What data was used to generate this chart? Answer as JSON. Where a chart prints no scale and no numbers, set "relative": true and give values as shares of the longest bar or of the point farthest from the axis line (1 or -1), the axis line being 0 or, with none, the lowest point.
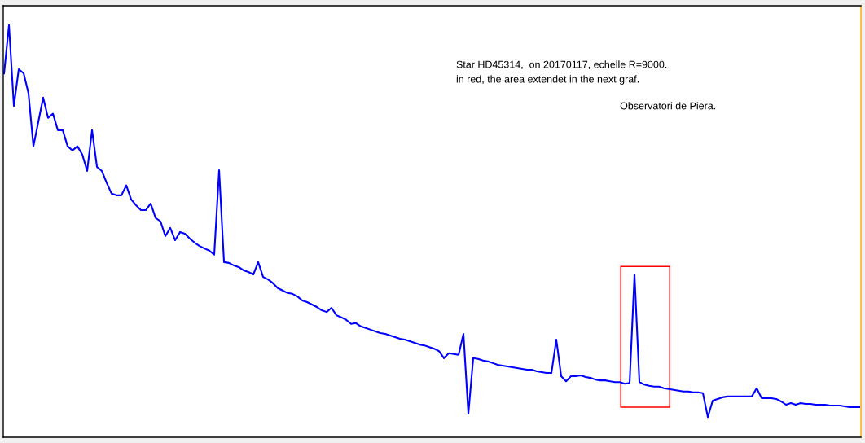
{
  "chart_data": {
    "type": "line",
    "relative": true,
    "categories": [
      null,
      null,
      null,
      null,
      null,
      null,
      null,
      null,
      null,
      null,
      null,
      null,
      null,
      null,
      null,
      null,
      null,
      null,
      null,
      null,
      null,
      null,
      null,
      null,
      null,
      null,
      null,
      null,
      null,
      null,
      null,
      null,
      null,
      null,
      null,
      null,
      null,
      null,
      null,
      null,
      null,
      null,
      null,
      null,
      null,
      null,
      null,
      null,
      null,
      null,
      null,
      null,
      null,
      null,
      null,
      null,
      null,
      null,
      null,
      null,
      null,
      null,
      null,
      null,
      null,
      null,
      null,
      null,
      null,
      null,
      null,
      null,
      null,
      null,
      null,
      null,
      null,
      null,
      null,
      null,
      null,
      null,
      null,
      null,
      null,
      null,
      null,
      null,
      null,
      null,
      null,
      null,
      null,
      null,
      null,
      null,
      null,
      null,
      null,
      null,
      null,
      null,
      null,
      null,
      null,
      null,
      null,
      null,
      null,
      null,
      null,
      null,
      null,
      null,
      null,
      null,
      null,
      null,
      null,
      null,
      null,
      null,
      null,
      null,
      null,
      null,
      null,
      null,
      null,
      null,
      null,
      null,
      null,
      null,
      null,
      null,
      null,
      null,
      null,
      null,
      null,
      null,
      null,
      null,
      null,
      null,
      null,
      null,
      null,
      null,
      null,
      null,
      null,
      null,
      null,
      null,
      null,
      null,
      null,
      null,
      null,
      null,
      null,
      null,
      null,
      null,
      null,
      null,
      null,
      null,
      null,
      null,
      null,
      null,
      null,
      null
    ],
    "series": [
      {
        "color": "#0000ff",
        "values": [
          0.883,
          1,
          0.804,
          0.893,
          0.883,
          0.834,
          0.706,
          0.765,
          0.824,
          0.775,
          0.785,
          0.745,
          0.745,
          0.706,
          0.696,
          0.706,
          0.686,
          0.646,
          0.745,
          0.656,
          0.646,
          0.617,
          0.591,
          0.587,
          0.587,
          0.611,
          0.577,
          0.563,
          0.551,
          0.551,
          0.567,
          0.532,
          0.524,
          0.488,
          0.508,
          0.478,
          0.498,
          0.494,
          0.482,
          0.472,
          0.464,
          0.458,
          0.453,
          0.443,
          0.648,
          0.425,
          0.423,
          0.417,
          0.413,
          0.405,
          0.401,
          0.395,
          0.425,
          0.389,
          0.383,
          0.374,
          0.362,
          0.356,
          0.35,
          0.348,
          0.342,
          0.332,
          0.328,
          0.322,
          0.316,
          0.308,
          0.304,
          0.314,
          0.296,
          0.291,
          0.285,
          0.275,
          0.277,
          0.269,
          0.265,
          0.261,
          0.257,
          0.253,
          0.251,
          0.247,
          0.243,
          0.239,
          0.237,
          0.233,
          0.229,
          0.225,
          0.223,
          0.219,
          0.215,
          0.209,
          0.192,
          0.204,
          0.202,
          0.2,
          0.251,
          0.057,
          0.192,
          0.19,
          0.186,
          0.184,
          0.18,
          0.176,
          0.174,
          0.172,
          0.17,
          0.168,
          0.166,
          0.164,
          0.164,
          0.16,
          0.158,
          0.156,
          0.156,
          0.237,
          0.148,
          0.136,
          0.148,
          0.148,
          0.15,
          0.146,
          0.144,
          0.14,
          0.138,
          0.138,
          0.136,
          0.134,
          0.134,
          0.13,
          0.132,
          0.395,
          0.134,
          0.128,
          0.125,
          0.123,
          0.123,
          0.119,
          0.117,
          0.115,
          0.113,
          0.111,
          0.111,
          0.109,
          0.109,
          0.107,
          0.049,
          0.089,
          0.093,
          0.097,
          0.099,
          0.099,
          0.099,
          0.099,
          0.099,
          0.099,
          0.119,
          0.095,
          0.095,
          0.095,
          0.093,
          0.087,
          0.079,
          0.083,
          0.079,
          0.083,
          0.081,
          0.081,
          0.079,
          0.079,
          0.079,
          0.077,
          0.077,
          0.077,
          0.075,
          0.073,
          0.073,
          0.073
        ]
      }
    ],
    "annotations": [
      "Star HD45314,  on 20170117, echelle R=9000.",
      "in red, the area extendet in the next graf.",
      "Observatori de Piera."
    ]
  }
}
